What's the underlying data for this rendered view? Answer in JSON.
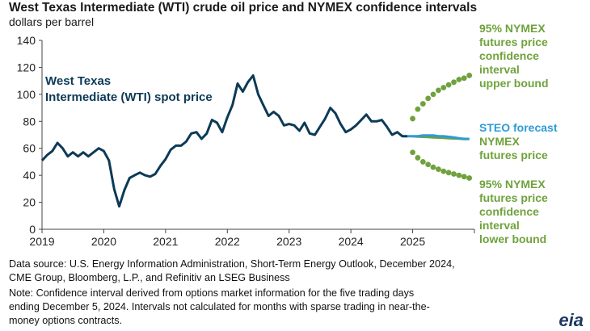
{
  "header": {
    "title": "West Texas Intermediate (WTI) crude oil price and NYMEX confidence intervals",
    "units": "dollars per barrel"
  },
  "footer": {
    "source_line1": "Data source: U.S. Energy Information Administration, Short-Term Energy Outlook, December 2024,",
    "source_line2": "CME Group, Bloomberg, L.P., and Refinitiv an LSEG Business",
    "note_line1": "Note: Confidence interval derived from options market information for the five trading days",
    "note_line2": "ending December 5, 2024. Intervals not calculated for months with sparse trading in near-the-",
    "note_line3": "money options contracts."
  },
  "logo_text": "eia",
  "colors": {
    "spot": "#0d3a56",
    "forecast": "#2e9bd6",
    "nymex": "#6fa23c",
    "axis": "#444444"
  },
  "chart_data": {
    "type": "line",
    "title": "West Texas Intermediate (WTI) crude oil price and NYMEX confidence intervals",
    "ylabel": "dollars per barrel",
    "ylim": [
      0,
      140
    ],
    "xlim": [
      2019.0,
      2026.0
    ],
    "yticks": [
      0,
      20,
      40,
      60,
      80,
      100,
      120,
      140
    ],
    "xticks": [
      "2019",
      "2020",
      "2021",
      "2022",
      "2023",
      "2024",
      "2025"
    ],
    "grid": false,
    "series": [
      {
        "name": "West Texas Intermediate (WTI) spot price",
        "label_lines": [
          "West Texas",
          "Intermediate (WTI) spot price"
        ],
        "x": [
          2019.0,
          2019.083,
          2019.167,
          2019.25,
          2019.333,
          2019.417,
          2019.5,
          2019.583,
          2019.667,
          2019.75,
          2019.833,
          2019.917,
          2020.0,
          2020.083,
          2020.167,
          2020.25,
          2020.333,
          2020.417,
          2020.5,
          2020.583,
          2020.667,
          2020.75,
          2020.833,
          2020.917,
          2021.0,
          2021.083,
          2021.167,
          2021.25,
          2021.333,
          2021.417,
          2021.5,
          2021.583,
          2021.667,
          2021.75,
          2021.833,
          2021.917,
          2022.0,
          2022.083,
          2022.167,
          2022.25,
          2022.333,
          2022.417,
          2022.5,
          2022.583,
          2022.667,
          2022.75,
          2022.833,
          2022.917,
          2023.0,
          2023.083,
          2023.167,
          2023.25,
          2023.333,
          2023.417,
          2023.5,
          2023.583,
          2023.667,
          2023.75,
          2023.833,
          2023.917,
          2024.0,
          2024.083,
          2024.167,
          2024.25,
          2024.333,
          2024.417,
          2024.5,
          2024.583,
          2024.667,
          2024.75,
          2024.833,
          2024.917
        ],
        "values": [
          51,
          55,
          58,
          64,
          60,
          54,
          57,
          54,
          57,
          54,
          57,
          60,
          58,
          51,
          30,
          17,
          29,
          38,
          40,
          42,
          40,
          39,
          41,
          47,
          52,
          59,
          62,
          62,
          65,
          71,
          72,
          67,
          71,
          81,
          79,
          72,
          83,
          92,
          108,
          102,
          109,
          114,
          100,
          92,
          84,
          87,
          84,
          77,
          78,
          77,
          73,
          79,
          71,
          70,
          76,
          82,
          90,
          86,
          78,
          72,
          74,
          77,
          81,
          85,
          80,
          80,
          81,
          76,
          70,
          72,
          69,
          69
        ]
      },
      {
        "name": "STEO forecast",
        "x": [
          2024.917,
          2025.0,
          2025.083,
          2025.167,
          2025.25,
          2025.333,
          2025.417,
          2025.5,
          2025.583,
          2025.667,
          2025.75,
          2025.833,
          2025.917
        ],
        "values": [
          69,
          69,
          69,
          69.5,
          69.5,
          69.5,
          69,
          69,
          68.5,
          68,
          67.5,
          67,
          67
        ]
      },
      {
        "name": "NYMEX futures price",
        "x": [
          2025.0,
          2025.083,
          2025.167,
          2025.25,
          2025.333,
          2025.417,
          2025.5,
          2025.583,
          2025.667,
          2025.75,
          2025.833,
          2025.917
        ],
        "values": [
          69,
          68.7,
          68.5,
          68.3,
          68.1,
          67.9,
          67.7,
          67.5,
          67.3,
          67.1,
          66.9,
          66.8
        ]
      },
      {
        "name": "95% NYMEX futures price confidence interval upper bound",
        "x": [
          2025.0,
          2025.083,
          2025.167,
          2025.25,
          2025.333,
          2025.417,
          2025.5,
          2025.583,
          2025.667,
          2025.75,
          2025.833,
          2025.917
        ],
        "values": [
          82,
          89,
          93,
          97,
          100,
          103,
          105,
          107,
          109,
          111,
          112,
          114
        ]
      },
      {
        "name": "95% NYMEX futures price confidence interval lower bound",
        "x": [
          2025.0,
          2025.083,
          2025.167,
          2025.25,
          2025.333,
          2025.417,
          2025.5,
          2025.583,
          2025.667,
          2025.75,
          2025.833,
          2025.917
        ],
        "values": [
          57,
          53,
          50,
          48,
          46,
          44.5,
          43,
          42,
          41,
          40,
          39,
          38
        ]
      }
    ],
    "annotations": {
      "upper": [
        "95% NYMEX",
        "futures price",
        "confidence",
        "interval",
        "upper bound"
      ],
      "steo": "STEO forecast",
      "nymex": [
        "NYMEX",
        "futures price"
      ],
      "lower": [
        "95% NYMEX",
        "futures price",
        "confidence",
        "interval",
        "lower bound"
      ]
    }
  }
}
